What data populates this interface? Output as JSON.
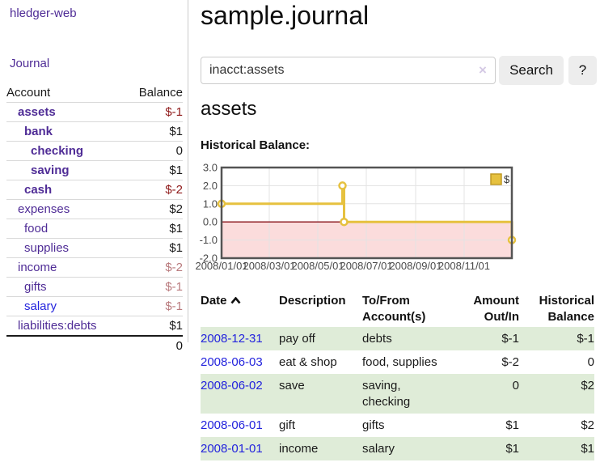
{
  "brand": "hledger-web",
  "nav": {
    "journal": "Journal"
  },
  "sidebar": {
    "columns": {
      "account": "Account",
      "balance": "Balance"
    },
    "rows": [
      {
        "name": "assets",
        "balance": "$-1",
        "depth": 1,
        "bold": true,
        "neg": "strong",
        "link": "purple"
      },
      {
        "name": "bank",
        "balance": "$1",
        "depth": 2,
        "bold": true,
        "neg": "none",
        "link": "purple"
      },
      {
        "name": "checking",
        "balance": "0",
        "depth": 3,
        "bold": true,
        "neg": "none",
        "link": "purple"
      },
      {
        "name": "saving",
        "balance": "$1",
        "depth": 3,
        "bold": true,
        "neg": "none",
        "link": "purple"
      },
      {
        "name": "cash",
        "balance": "$-2",
        "depth": 2,
        "bold": true,
        "neg": "strong",
        "link": "purple"
      },
      {
        "name": "expenses",
        "balance": "$2",
        "depth": 1,
        "bold": false,
        "neg": "none",
        "link": "purple"
      },
      {
        "name": "food",
        "balance": "$1",
        "depth": 2,
        "bold": false,
        "neg": "none",
        "link": "purple"
      },
      {
        "name": "supplies",
        "balance": "$1",
        "depth": 2,
        "bold": false,
        "neg": "none",
        "link": "purple"
      },
      {
        "name": "income",
        "balance": "$-2",
        "depth": 1,
        "bold": false,
        "neg": "soft",
        "link": "purple"
      },
      {
        "name": "gifts",
        "balance": "$-1",
        "depth": 2,
        "bold": false,
        "neg": "soft",
        "link": "purple"
      },
      {
        "name": "salary",
        "balance": "$-1",
        "depth": 2,
        "bold": false,
        "neg": "soft",
        "link": "blue"
      },
      {
        "name": "liabilities:debts",
        "balance": "$1",
        "depth": 1,
        "bold": false,
        "neg": "none",
        "link": "purple"
      }
    ],
    "total": "0"
  },
  "header": {
    "title": "sample.journal"
  },
  "search": {
    "value": "inacct:assets",
    "clear": "×",
    "submit": "Search",
    "help": "?"
  },
  "account": {
    "title": "assets",
    "section_label": "Historical Balance:"
  },
  "chart_data": {
    "type": "line",
    "step": true,
    "title": "Historical Balance:",
    "legend": [
      {
        "label": "$",
        "color": "#e6c13f"
      }
    ],
    "x_range": [
      "2008-01-01",
      "2008-12-31"
    ],
    "ylim": [
      -2,
      3
    ],
    "y_ticks": [
      "3.0",
      "2.0",
      "1.0",
      "0.0",
      "-1.0",
      "-2.0"
    ],
    "x_ticks": [
      {
        "label": "2008/01/01",
        "date": "2008-01-01"
      },
      {
        "label": "2008/03/01",
        "date": "2008-03-01"
      },
      {
        "label": "2008/05/01",
        "date": "2008-05-01"
      },
      {
        "label": "2008/07/01",
        "date": "2008-07-01"
      },
      {
        "label": "2008/09/01",
        "date": "2008-09-01"
      },
      {
        "label": "2008/11/01",
        "date": "2008-11-01"
      }
    ],
    "series": [
      {
        "name": "$",
        "points": [
          {
            "date": "2008-01-01",
            "value": 1
          },
          {
            "date": "2008-06-01",
            "value": 2
          },
          {
            "date": "2008-06-03",
            "value": 0
          },
          {
            "date": "2008-12-31",
            "value": -1
          }
        ]
      }
    ],
    "colors": {
      "line": "#e6c13f",
      "marker_fill": "#ffffff",
      "legend_border": "#c09a25",
      "negative_fill": "#fbdcdc",
      "zero_line": "#8f1f26",
      "border": "#545454",
      "grid": "#e3e3e3",
      "axis_text": "#4a4a4a"
    }
  },
  "register": {
    "columns": [
      {
        "label": "Date",
        "sorted": "asc"
      },
      {
        "label": "Description"
      },
      {
        "label": "To/From Account(s)"
      },
      {
        "label": "Amount Out/In"
      },
      {
        "label": "Historical Balance"
      }
    ],
    "rows": [
      {
        "date": "2008-12-31",
        "description": "pay off",
        "accounts": "debts",
        "amount": "$-1",
        "amount_neg": true,
        "balance": "$-1",
        "balance_neg": true
      },
      {
        "date": "2008-06-03",
        "description": "eat & shop",
        "accounts": "food, supplies",
        "amount": "$-2",
        "amount_neg": true,
        "balance": "0",
        "balance_neg": false
      },
      {
        "date": "2008-06-02",
        "description": "save",
        "accounts": "saving, checking",
        "amount": "0",
        "amount_neg": false,
        "balance": "$2",
        "balance_neg": false
      },
      {
        "date": "2008-06-01",
        "description": "gift",
        "accounts": "gifts",
        "amount": "$1",
        "amount_neg": false,
        "balance": "$2",
        "balance_neg": false
      },
      {
        "date": "2008-01-01",
        "description": "income",
        "accounts": "salary",
        "amount": "$1",
        "amount_neg": false,
        "balance": "$1",
        "balance_neg": false
      }
    ]
  }
}
